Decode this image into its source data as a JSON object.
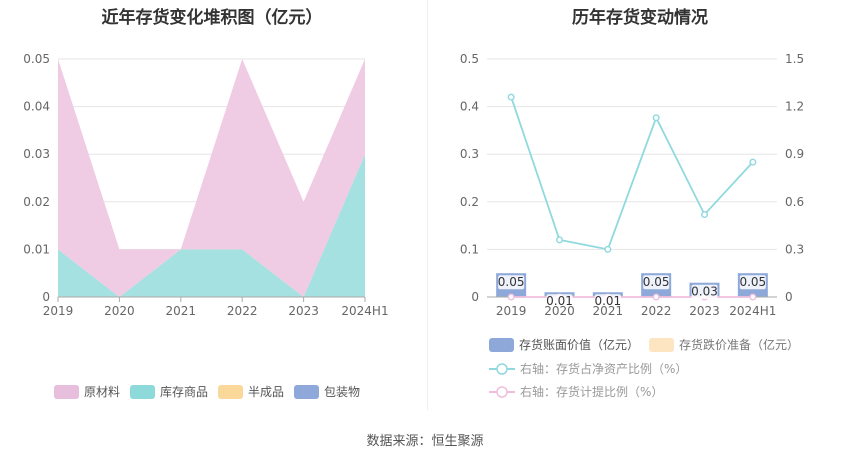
{
  "left_chart": {
    "title": "近年存货变化堆积图（亿元）",
    "legend": [
      {
        "label": "原材料",
        "color": "#e8bedd"
      },
      {
        "label": "库存商品",
        "color": "#8ed9d9"
      },
      {
        "label": "半成品",
        "color": "#f9d899"
      },
      {
        "label": "包装物",
        "color": "#8ea9d9"
      }
    ]
  },
  "right_chart": {
    "title": "历年存货变动情况",
    "legend": [
      {
        "label": "存货账面价值（亿元）",
        "color": "#8ea9d9"
      },
      {
        "label": "存货跌价准备（亿元）",
        "color": "#fde5c2"
      },
      {
        "label": "右轴：存货占净资产比例（%）",
        "color": "#8fd9de"
      },
      {
        "label": "右轴：存货计提比例（%）",
        "color": "#f0bedd"
      }
    ]
  },
  "source": "数据来源：恒生聚源",
  "chart_data": [
    {
      "type": "area",
      "stacked": true,
      "title": "近年存货变化堆积图（亿元）",
      "categories": [
        "2019",
        "2020",
        "2021",
        "2022",
        "2023",
        "2024H1"
      ],
      "series": [
        {
          "name": "库存商品",
          "color": "#a6e1e1",
          "values": [
            0.01,
            0.0,
            0.01,
            0.01,
            0.0,
            0.03
          ]
        },
        {
          "name": "原材料",
          "color": "#efcbe4",
          "values": [
            0.04,
            0.01,
            0.0,
            0.04,
            0.02,
            0.02
          ]
        },
        {
          "name": "半成品",
          "color": "#f9d899",
          "values": [
            0,
            0,
            0,
            0,
            0,
            0
          ]
        },
        {
          "name": "包装物",
          "color": "#8ea9d9",
          "values": [
            0,
            0,
            0,
            0,
            0,
            0
          ]
        }
      ],
      "yticks": [
        "0",
        "0.01",
        "0.02",
        "0.03",
        "0.04",
        "0.05"
      ],
      "ylim": [
        0,
        0.05
      ]
    },
    {
      "type": "bar",
      "title": "历年存货变动情况",
      "categories": [
        "2019",
        "2020",
        "2021",
        "2022",
        "2023",
        "2024H1"
      ],
      "series": [
        {
          "name": "存货账面价值（亿元）",
          "axis": "left",
          "color": "#8ea9d9",
          "values": [
            0.05,
            0.01,
            0.01,
            0.05,
            0.03,
            0.05
          ],
          "labels": [
            "0.05",
            "0.01",
            "0.01",
            "0.05",
            "0.03",
            "0.05"
          ]
        },
        {
          "name": "存货跌价准备（亿元）",
          "axis": "left",
          "color": "#fde5c2",
          "values": [
            0,
            0,
            0,
            0,
            0,
            0
          ]
        },
        {
          "name": "右轴：存货占净资产比例（%）",
          "axis": "right",
          "type": "line",
          "color": "#8fd9de",
          "values": [
            1.26,
            0.36,
            0.3,
            1.13,
            0.52,
            0.85
          ]
        },
        {
          "name": "右轴：存货计提比例（%）",
          "axis": "right",
          "type": "line",
          "color": "#f0bedd",
          "values": [
            0,
            0,
            0,
            0,
            0,
            0
          ]
        }
      ],
      "yticks_left": [
        "0",
        "0.1",
        "0.2",
        "0.3",
        "0.4",
        "0.5"
      ],
      "yticks_right": [
        "0",
        "0.3",
        "0.6",
        "0.9",
        "1.2",
        "1.5"
      ],
      "ylim_left": [
        0,
        0.5
      ],
      "ylim_right": [
        0,
        1.5
      ]
    }
  ]
}
